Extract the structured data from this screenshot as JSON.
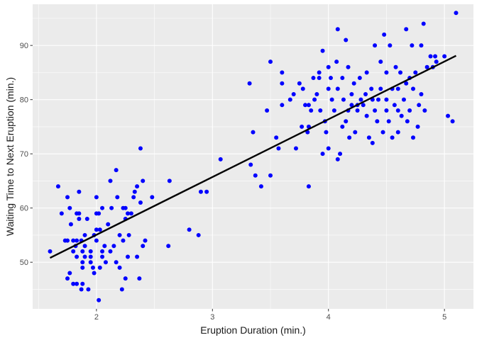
{
  "chart_data": {
    "type": "scatter",
    "title": "",
    "xlabel": "Eruption Duration (min.)",
    "ylabel": "Waiting Time to Next Eruption (min.)",
    "xlim": [
      1.45,
      5.25
    ],
    "ylim": [
      41.4,
      97.6
    ],
    "x_ticks": [
      2,
      3,
      4,
      5
    ],
    "y_ticks": [
      50,
      60,
      70,
      80,
      90
    ],
    "grid": true,
    "legend": "none",
    "colors": {
      "panel": "#ebebeb",
      "grid_major": "#ffffff",
      "points": "#0000ff",
      "fit_line": "#000000",
      "tick_text": "#4d4d4d",
      "axis_title": "#1a1a1a"
    },
    "series": [
      {
        "type": "scatter",
        "points": [
          [
            1.6,
            52
          ],
          [
            1.67,
            64
          ],
          [
            1.7,
            59
          ],
          [
            1.73,
            54
          ],
          [
            1.75,
            54
          ],
          [
            1.75,
            62
          ],
          [
            1.75,
            47
          ],
          [
            1.77,
            48
          ],
          [
            1.77,
            60
          ],
          [
            1.78,
            57
          ],
          [
            1.8,
            52
          ],
          [
            1.8,
            46
          ],
          [
            1.8,
            54
          ],
          [
            1.82,
            53
          ],
          [
            1.83,
            54
          ],
          [
            1.83,
            59
          ],
          [
            1.83,
            46
          ],
          [
            1.83,
            51
          ],
          [
            1.85,
            63
          ],
          [
            1.85,
            58
          ],
          [
            1.85,
            59
          ],
          [
            1.87,
            45
          ],
          [
            1.87,
            54
          ],
          [
            1.88,
            49
          ],
          [
            1.88,
            46
          ],
          [
            1.88,
            50
          ],
          [
            1.88,
            52
          ],
          [
            1.9,
            51
          ],
          [
            1.9,
            53
          ],
          [
            1.9,
            55
          ],
          [
            1.92,
            58
          ],
          [
            1.93,
            45
          ],
          [
            1.95,
            51
          ],
          [
            1.95,
            52
          ],
          [
            1.97,
            49
          ],
          [
            1.98,
            48
          ],
          [
            1.98,
            55
          ],
          [
            2.0,
            56
          ],
          [
            2.0,
            62
          ],
          [
            2.0,
            54
          ],
          [
            2.0,
            59
          ],
          [
            2.02,
            43
          ],
          [
            2.02,
            59
          ],
          [
            2.03,
            56
          ],
          [
            2.03,
            49
          ],
          [
            2.05,
            60
          ],
          [
            2.05,
            52
          ],
          [
            2.05,
            51
          ],
          [
            2.07,
            53
          ],
          [
            2.08,
            50
          ],
          [
            2.1,
            57
          ],
          [
            2.12,
            65
          ],
          [
            2.12,
            52
          ],
          [
            2.13,
            60
          ],
          [
            2.15,
            53
          ],
          [
            2.17,
            67
          ],
          [
            2.17,
            50
          ],
          [
            2.18,
            62
          ],
          [
            2.2,
            49
          ],
          [
            2.2,
            55
          ],
          [
            2.22,
            45
          ],
          [
            2.23,
            60
          ],
          [
            2.23,
            54
          ],
          [
            2.25,
            47
          ],
          [
            2.25,
            60
          ],
          [
            2.27,
            59
          ],
          [
            2.27,
            51
          ],
          [
            2.28,
            55
          ],
          [
            2.3,
            59
          ],
          [
            2.32,
            62
          ],
          [
            2.33,
            63
          ],
          [
            2.35,
            64
          ],
          [
            2.35,
            51
          ],
          [
            2.37,
            47
          ],
          [
            2.38,
            61
          ],
          [
            2.38,
            71
          ],
          [
            2.4,
            65
          ],
          [
            2.4,
            53
          ],
          [
            2.42,
            54
          ],
          [
            2.48,
            62
          ],
          [
            2.62,
            53
          ],
          [
            2.63,
            65
          ],
          [
            2.8,
            56
          ],
          [
            2.88,
            55
          ],
          [
            2.9,
            63
          ],
          [
            3.07,
            69
          ],
          [
            3.32,
            83
          ],
          [
            3.33,
            68
          ],
          [
            3.35,
            74
          ],
          [
            3.37,
            66
          ],
          [
            3.42,
            64
          ],
          [
            3.47,
            78
          ],
          [
            3.5,
            87
          ],
          [
            3.5,
            66
          ],
          [
            3.55,
            73
          ],
          [
            3.57,
            71
          ],
          [
            3.6,
            79
          ],
          [
            3.6,
            85
          ],
          [
            3.6,
            83
          ],
          [
            3.67,
            80
          ],
          [
            3.7,
            81
          ],
          [
            3.72,
            71
          ],
          [
            3.75,
            83
          ],
          [
            3.77,
            75
          ],
          [
            3.78,
            82
          ],
          [
            3.8,
            79
          ],
          [
            3.82,
            74
          ],
          [
            3.83,
            64
          ],
          [
            3.83,
            75
          ],
          [
            3.83,
            79
          ],
          [
            3.85,
            78
          ],
          [
            3.87,
            84
          ],
          [
            3.88,
            80
          ],
          [
            3.9,
            81
          ],
          [
            3.92,
            84
          ],
          [
            3.93,
            78
          ],
          [
            3.95,
            70
          ],
          [
            3.95,
            89
          ],
          [
            3.97,
            76
          ],
          [
            3.98,
            74
          ],
          [
            4.0,
            71
          ],
          [
            4.0,
            82
          ],
          [
            4.0,
            86
          ],
          [
            4.02,
            84
          ],
          [
            4.03,
            80
          ],
          [
            4.05,
            78
          ],
          [
            4.07,
            87
          ],
          [
            4.08,
            69
          ],
          [
            4.08,
            82
          ],
          [
            4.08,
            93
          ],
          [
            4.1,
            70
          ],
          [
            4.12,
            75
          ],
          [
            4.12,
            84
          ],
          [
            4.13,
            80
          ],
          [
            4.15,
            91
          ],
          [
            4.15,
            76
          ],
          [
            4.17,
            78
          ],
          [
            4.17,
            86
          ],
          [
            4.18,
            73
          ],
          [
            4.2,
            79
          ],
          [
            4.2,
            81
          ],
          [
            4.22,
            83
          ],
          [
            4.23,
            74
          ],
          [
            4.25,
            78
          ],
          [
            4.27,
            84
          ],
          [
            4.28,
            80
          ],
          [
            4.3,
            79
          ],
          [
            4.32,
            81
          ],
          [
            4.33,
            77
          ],
          [
            4.33,
            85
          ],
          [
            4.35,
            73
          ],
          [
            4.37,
            82
          ],
          [
            4.38,
            72
          ],
          [
            4.4,
            90
          ],
          [
            4.4,
            78
          ],
          [
            4.42,
            76
          ],
          [
            4.43,
            80
          ],
          [
            4.45,
            82
          ],
          [
            4.45,
            87
          ],
          [
            4.47,
            74
          ],
          [
            4.48,
            92
          ],
          [
            4.5,
            78
          ],
          [
            4.5,
            80
          ],
          [
            4.5,
            85
          ],
          [
            4.52,
            76
          ],
          [
            4.53,
            90
          ],
          [
            4.55,
            73
          ],
          [
            4.55,
            82
          ],
          [
            4.57,
            79
          ],
          [
            4.58,
            86
          ],
          [
            4.6,
            74
          ],
          [
            4.6,
            82
          ],
          [
            4.62,
            85
          ],
          [
            4.63,
            77
          ],
          [
            4.65,
            80
          ],
          [
            4.67,
            93
          ],
          [
            4.67,
            83
          ],
          [
            4.68,
            76
          ],
          [
            4.7,
            78
          ],
          [
            4.7,
            84
          ],
          [
            4.72,
            90
          ],
          [
            4.73,
            73
          ],
          [
            4.75,
            85
          ],
          [
            4.77,
            75
          ],
          [
            4.78,
            79
          ],
          [
            4.8,
            81
          ],
          [
            4.8,
            90
          ],
          [
            4.82,
            94
          ],
          [
            4.83,
            78
          ],
          [
            4.85,
            86
          ],
          [
            4.88,
            88
          ],
          [
            4.9,
            86
          ],
          [
            4.93,
            87
          ],
          [
            5.0,
            88
          ],
          [
            5.03,
            77
          ],
          [
            5.07,
            76
          ],
          [
            5.1,
            96
          ],
          [
            3.92,
            85
          ],
          [
            4.25,
            79
          ],
          [
            4.38,
            80
          ],
          [
            4.6,
            78
          ],
          [
            4.73,
            82
          ],
          [
            4.92,
            88
          ],
          [
            2.95,
            63
          ],
          [
            1.95,
            50
          ],
          [
            2.25,
            58
          ]
        ]
      },
      {
        "type": "line",
        "name": "",
        "x": [
          1.6,
          5.1
        ],
        "y": [
          50.8,
          88.1
        ]
      }
    ]
  }
}
